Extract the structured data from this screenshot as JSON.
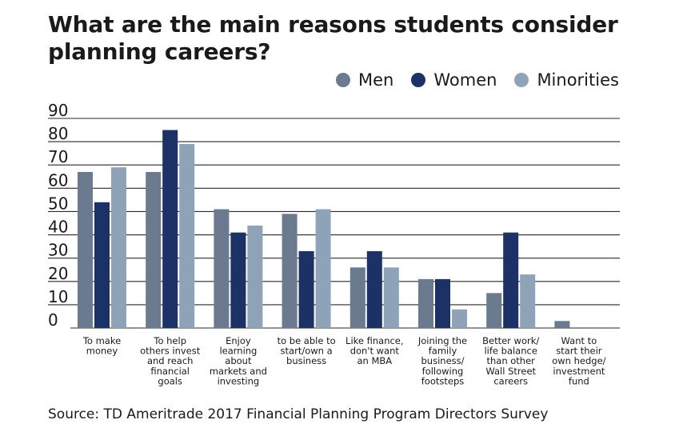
{
  "chart_data": {
    "type": "bar",
    "title": "What are the main reasons students consider planning careers?",
    "categories": [
      "To make money",
      "To help others invest and reach financial goals",
      "Enjoy learning about markets and investing",
      "to be able to start/own a business",
      "Like finance, don't want an MBA",
      "Joining the family business/ following footsteps",
      "Better work/ life balance than other Wall Street careers",
      "Want to start their own hedge/ investment fund"
    ],
    "category_lines": [
      [
        "To make",
        "money"
      ],
      [
        "To help",
        "others invest",
        "and reach",
        "financial",
        "goals"
      ],
      [
        "Enjoy",
        "learning",
        "about",
        "markets and",
        "investing"
      ],
      [
        "to be able to",
        "start/own a",
        "business"
      ],
      [
        "Like finance,",
        "don't want",
        "an MBA"
      ],
      [
        "Joining the",
        "family",
        "business/",
        "following",
        "footsteps"
      ],
      [
        "Better work/",
        "life balance",
        "than other",
        "Wall Street",
        "careers"
      ],
      [
        "Want to",
        "start their",
        "own hedge/",
        "investment",
        "fund"
      ]
    ],
    "series": [
      {
        "name": "Men",
        "color": "#6b7a8f",
        "values": [
          67,
          67,
          51,
          49,
          26,
          21,
          15,
          3
        ]
      },
      {
        "name": "Women",
        "color": "#1c3166",
        "values": [
          54,
          85,
          41,
          33,
          33,
          21,
          41,
          0
        ]
      },
      {
        "name": "Minorities",
        "color": "#8fa3b8",
        "values": [
          69,
          79,
          44,
          51,
          26,
          8,
          23,
          0
        ]
      }
    ],
    "yticks": [
      0,
      10,
      20,
      30,
      40,
      50,
      60,
      70,
      80,
      90
    ],
    "ylim": [
      0,
      90
    ],
    "grid": true,
    "legend": "top-right",
    "xlabel": "",
    "ylabel": ""
  },
  "title_line1": "What are the main reasons students consider",
  "title_line2": "planning careers?",
  "legend": [
    {
      "label": "Men",
      "color": "#6b7a8f"
    },
    {
      "label": "Women",
      "color": "#1c3166"
    },
    {
      "label": "Minorities",
      "color": "#8fa3b8"
    }
  ],
  "source": "Source: TD Ameritrade 2017 Financial Planning Program Directors Survey"
}
